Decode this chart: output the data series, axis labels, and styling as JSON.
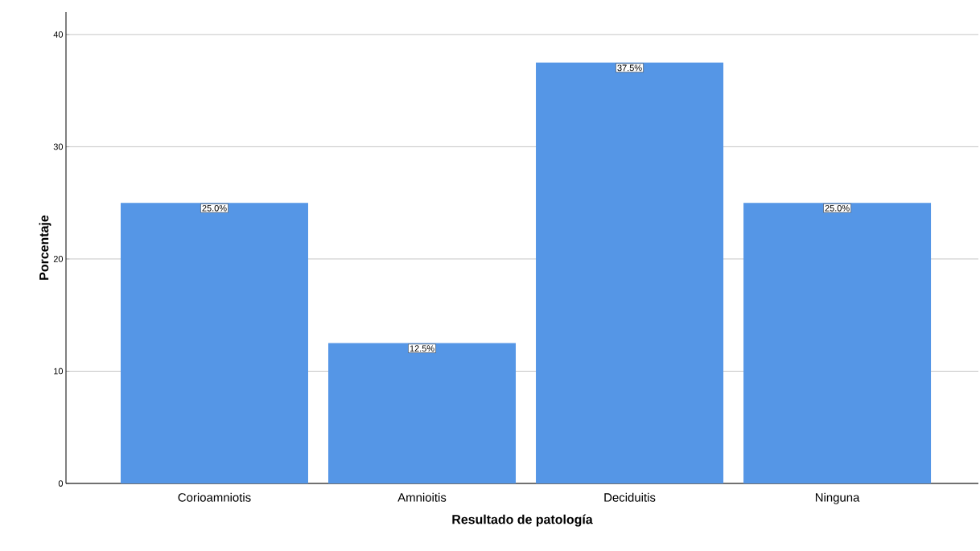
{
  "chart_data": {
    "type": "bar",
    "xlabel": "Resultado de patología",
    "ylabel": "Porcentaje",
    "categories": [
      "Corioamniotis",
      "Amnioitis",
      "Deciduitis",
      "Ninguna"
    ],
    "values": [
      25.0,
      12.5,
      37.5,
      25.0
    ],
    "value_labels": [
      "25.0%",
      "12.5%",
      "37.5%",
      "25.0%"
    ],
    "color": "#5596e6",
    "ylim": [
      0,
      42
    ],
    "yticks": [
      0,
      10,
      20,
      30,
      40
    ],
    "grid": "y"
  }
}
